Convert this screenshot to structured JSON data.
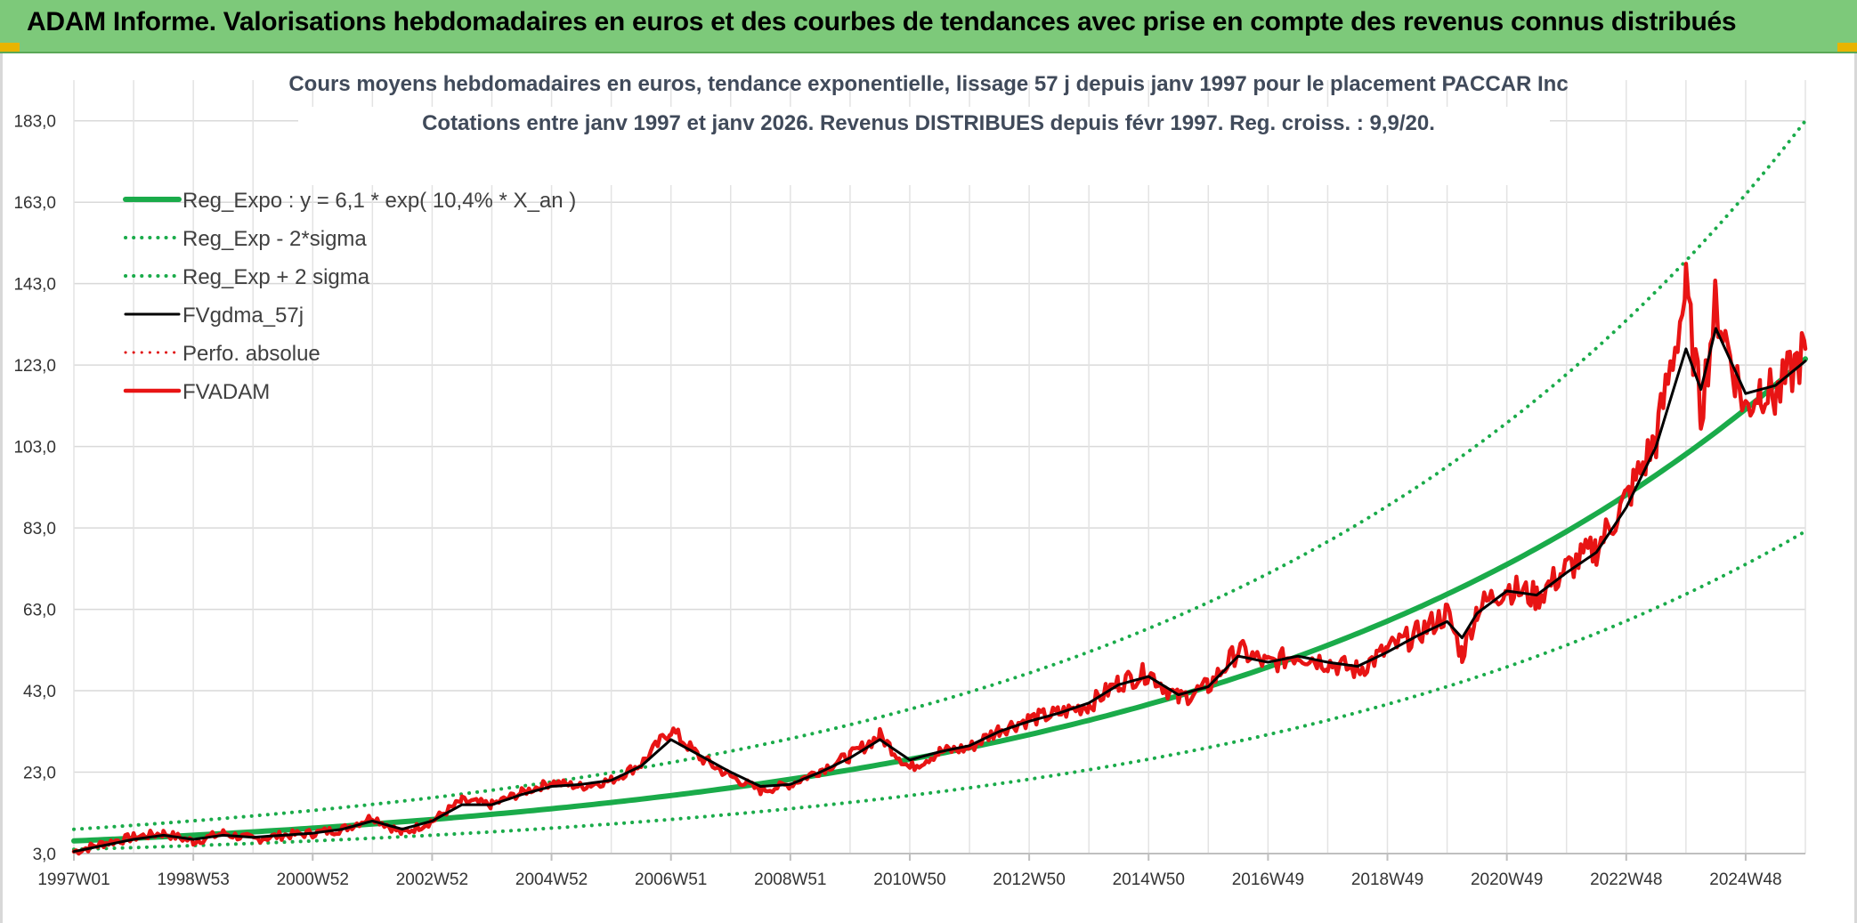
{
  "banner": {
    "title": "ADAM Informe. Valorisations hebdomadaires en euros et des courbes de tendances avec prise en compte des revenus connus distribués",
    "background": "#7dc97a",
    "corner_color": "#e8b400"
  },
  "chart_data": {
    "type": "line",
    "title": "Cours moyens hebdomadaires en euros, tendance exponentielle, lissage 57 j depuis janv 1997 pour le placement PACCAR Inc",
    "subtitle": "Cotations entre janv 1997 et janv 2026. Revenus DISTRIBUES depuis févr 1997. Reg. croiss. : 9,9/20.",
    "xlabel": "",
    "ylabel": "",
    "xlim": [
      1997.0,
      2026.0
    ],
    "ylim": [
      3.0,
      193.0
    ],
    "grid": true,
    "legend_position": "top-left",
    "y_ticks": [
      3.0,
      23.0,
      43.0,
      63.0,
      83.0,
      103.0,
      123.0,
      143.0,
      163.0,
      183.0
    ],
    "y_tick_labels": [
      "3,0",
      "23,0",
      "43,0",
      "63,0",
      "83,0",
      "103,0",
      "123,0",
      "143,0",
      "163,0",
      "183,0"
    ],
    "x_ticks": [
      1997.0,
      1999.0,
      2001.0,
      2003.0,
      2005.0,
      2007.0,
      2009.0,
      2011.0,
      2013.0,
      2015.0,
      2017.0,
      2019.0,
      2021.0,
      2023.0,
      2025.0
    ],
    "x_tick_labels": [
      "1997W01",
      "1998W53",
      "2000W52",
      "2002W52",
      "2004W52",
      "2006W51",
      "2008W51",
      "2010W50",
      "2012W50",
      "2014W50",
      "2016W49",
      "2018W49",
      "2020W49",
      "2022W48",
      "2024W48"
    ],
    "regression": {
      "a": 6.1,
      "rate": 0.104,
      "x0": 1997.0,
      "lower_factor": 0.66,
      "upper_factor": 1.47
    },
    "series": [
      {
        "name": "Reg_Expo : y = 6,1 * exp( 10,4% *  X_an )",
        "color": "#1aab4a",
        "style": "solid",
        "width": 6,
        "kind": "regression",
        "factor": 1.0
      },
      {
        "name": "Reg_Exp - 2*sigma",
        "color": "#1aab4a",
        "style": "dotted",
        "width": 4,
        "kind": "regression",
        "factor": "lower"
      },
      {
        "name": "Reg_Exp + 2 sigma",
        "color": "#1aab4a",
        "style": "dotted",
        "width": 4,
        "kind": "regression",
        "factor": "upper"
      },
      {
        "name": "FVgdma_57j",
        "color": "#000000",
        "style": "solid",
        "width": 3,
        "kind": "data",
        "key": "smooth"
      },
      {
        "name": "Perfo. absolue",
        "color": "#e01010",
        "style": "dotted",
        "width": 3,
        "kind": "data",
        "key": "none"
      },
      {
        "name": "FVADAM",
        "color": "#e81414",
        "style": "solid",
        "width": 4.5,
        "kind": "data",
        "key": "raw"
      }
    ],
    "x": [
      1997.0,
      1997.5,
      1998.0,
      1998.5,
      1999.0,
      1999.5,
      2000.0,
      2000.5,
      2001.0,
      2001.5,
      2002.0,
      2002.5,
      2003.0,
      2003.5,
      2004.0,
      2004.5,
      2005.0,
      2005.5,
      2006.0,
      2006.5,
      2007.0,
      2007.5,
      2008.0,
      2008.5,
      2009.0,
      2009.5,
      2010.0,
      2010.5,
      2011.0,
      2011.5,
      2012.0,
      2012.5,
      2013.0,
      2013.5,
      2014.0,
      2014.5,
      2015.0,
      2015.5,
      2016.0,
      2016.5,
      2017.0,
      2017.5,
      2018.0,
      2018.5,
      2019.0,
      2019.5,
      2020.0,
      2020.25,
      2020.5,
      2021.0,
      2021.5,
      2022.0,
      2022.5,
      2023.0,
      2023.5,
      2024.0,
      2024.25,
      2024.5,
      2025.0,
      2025.25,
      2025.5,
      2026.0
    ],
    "fvadam": [
      3.5,
      5.5,
      7.0,
      8.0,
      6.0,
      8.0,
      6.5,
      7.5,
      8.0,
      9.0,
      12.0,
      8.0,
      11.0,
      16.0,
      15.0,
      18.0,
      20.5,
      19.5,
      21.0,
      25.0,
      33.5,
      26.5,
      22.0,
      18.5,
      20.0,
      23.5,
      27.0,
      32.0,
      24.0,
      28.0,
      29.0,
      33.5,
      36.0,
      37.5,
      39.5,
      45.0,
      47.5,
      41.0,
      44.0,
      53.0,
      49.5,
      52.0,
      50.0,
      48.0,
      53.0,
      57.0,
      62.0,
      52.0,
      63.0,
      68.5,
      66.0,
      73.0,
      78.0,
      90.0,
      105.0,
      141.0,
      112.0,
      138.0,
      112.0,
      118.0,
      115.0,
      127.0
    ],
    "fvgdma": [
      3.5,
      5.0,
      6.5,
      7.5,
      6.5,
      7.5,
      7.0,
      7.5,
      8.0,
      9.0,
      11.0,
      9.0,
      11.0,
      15.0,
      15.0,
      17.5,
      19.5,
      20.0,
      21.0,
      24.5,
      31.0,
      27.0,
      23.0,
      19.5,
      20.0,
      23.0,
      26.5,
      31.0,
      26.0,
      28.0,
      29.5,
      33.0,
      35.5,
      37.5,
      40.0,
      44.5,
      46.5,
      42.0,
      44.0,
      51.5,
      50.0,
      51.5,
      50.0,
      49.0,
      52.5,
      56.5,
      60.0,
      56.0,
      62.0,
      67.5,
      66.5,
      72.0,
      77.0,
      88.0,
      103.0,
      127.0,
      117.0,
      132.0,
      116.0,
      117.0,
      118.0,
      124.0
    ]
  },
  "legend": {
    "items": [
      "Reg_Expo : y = 6,1 * exp( 10,4% *  X_an )",
      "Reg_Exp - 2*sigma",
      "Reg_Exp + 2 sigma",
      "FVgdma_57j",
      "Perfo. absolue",
      "FVADAM"
    ]
  }
}
